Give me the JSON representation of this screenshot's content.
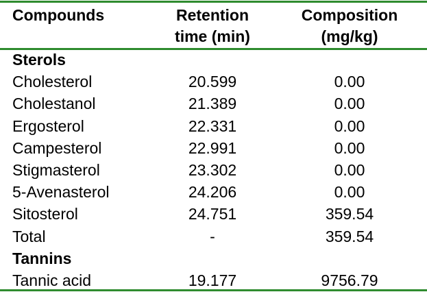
{
  "table": {
    "header": [
      [
        "Compounds"
      ],
      [
        "Retention",
        "time (min)"
      ],
      [
        "Composition",
        "(mg/kg)"
      ]
    ],
    "sections": [
      {
        "title": "Sterols",
        "rows": [
          [
            "Cholesterol",
            "20.599",
            "0.00"
          ],
          [
            "Cholestanol",
            "21.389",
            "0.00"
          ],
          [
            "Ergosterol",
            "22.331",
            "0.00"
          ],
          [
            "Campesterol",
            "22.991",
            "0.00"
          ],
          [
            "Stigmasterol",
            "23.302",
            "0.00"
          ],
          [
            "5-Avenasterol",
            "24.206",
            "0.00"
          ],
          [
            "Sitosterol",
            "24.751",
            "359.54"
          ],
          [
            "Total",
            "-",
            "359.54"
          ]
        ]
      },
      {
        "title": "Tannins",
        "rows": [
          [
            "Tannic acid",
            "19.177",
            "9756.79"
          ]
        ]
      }
    ]
  }
}
